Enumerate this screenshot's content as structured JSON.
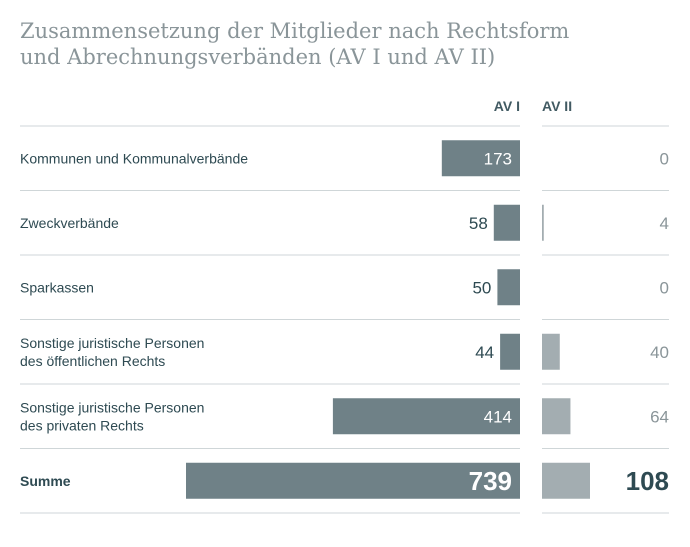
{
  "chart_data": {
    "type": "bar",
    "title": "Zusammensetzung der Mitglieder nach Rechtsform und Abrechnungsverbänden (AV I und AV II)",
    "title_lines": [
      "Zusammensetzung der Mitglieder nach Rechtsform",
      "und Abrechnungsverbänden (AV I und AV II)"
    ],
    "categories": [
      [
        "Kommunen und Kommunalverbände"
      ],
      [
        "Zweckverbände"
      ],
      [
        "Sparkassen"
      ],
      [
        "Sonstige juristische Personen",
        "des öffentlichen Rechts"
      ],
      [
        "Sonstige juristische Personen",
        "des privaten Rechts"
      ]
    ],
    "series": [
      {
        "name": "AV I",
        "values": [
          173,
          58,
          50,
          44,
          414
        ],
        "color": "#6f8187"
      },
      {
        "name": "AV II",
        "values": [
          0,
          4,
          0,
          40,
          64
        ],
        "color": "#a3adb1"
      }
    ],
    "total": {
      "label": "Summe",
      "values": [
        739,
        108
      ]
    },
    "xlim_av1": [
      0,
      739
    ],
    "xlim_av2": [
      0,
      108
    ]
  },
  "colors": {
    "av1_bar": "#6f8187",
    "av2_bar": "#a3adb1",
    "label_dark": "#2e4a52",
    "label_light": "#8a9599",
    "grid": "#cfd6d8"
  }
}
